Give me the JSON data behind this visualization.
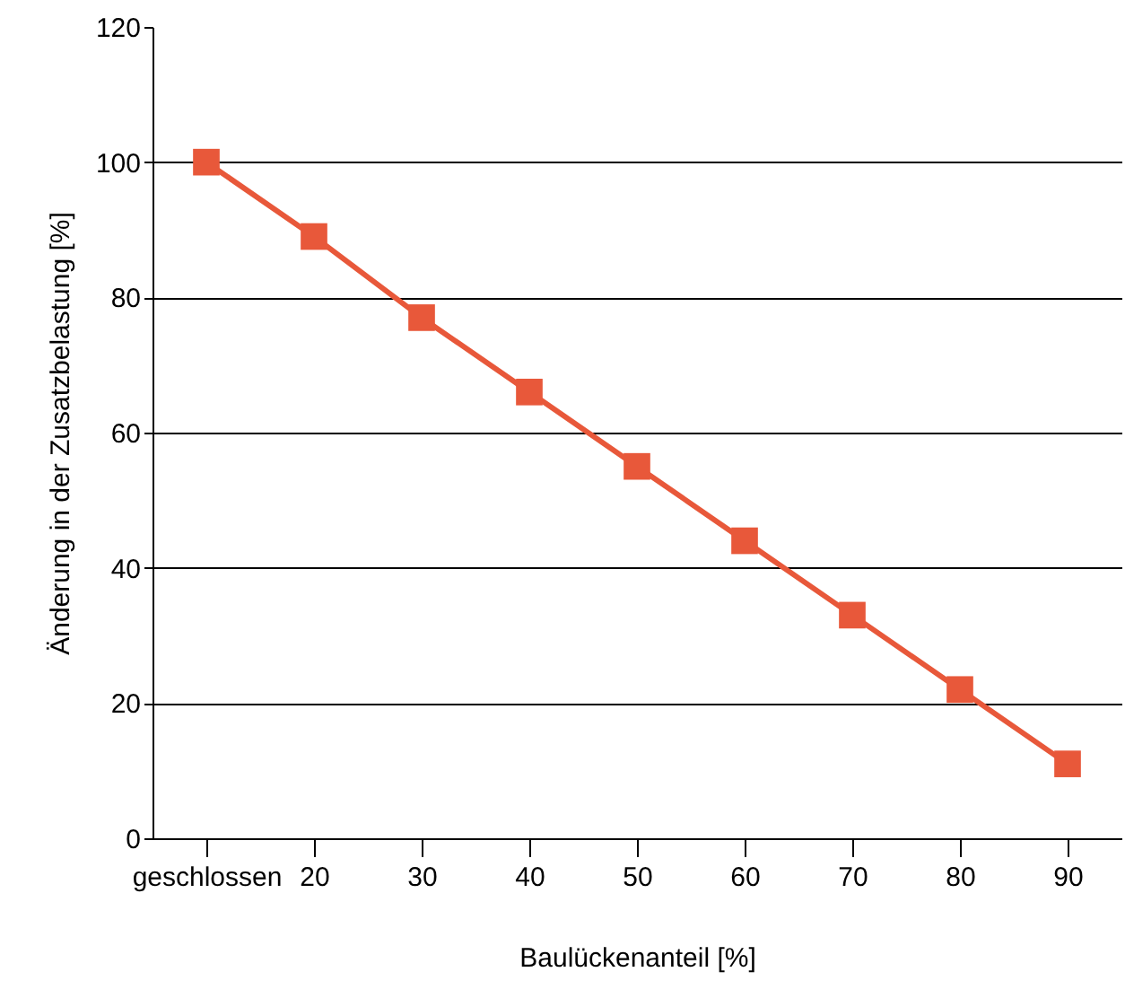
{
  "chart_data": {
    "type": "line",
    "xlabel": "Baulückenanteil [%]",
    "ylabel": "Änderung in der Zusatzbelastung [%]",
    "x": [
      10,
      20,
      30,
      40,
      50,
      60,
      70,
      80,
      90
    ],
    "series": [
      {
        "color": "#e8583a",
        "values": [
          100,
          89,
          77,
          66,
          55,
          44,
          33,
          22,
          11
        ]
      }
    ],
    "xlim": [
      5,
      95
    ],
    "xticks": [
      {
        "value": 10,
        "label": "geschlossen"
      },
      20,
      30,
      40,
      50,
      60,
      70,
      80,
      90
    ],
    "ylim": [
      0,
      120
    ],
    "yticks": [
      0,
      20,
      40,
      60,
      80,
      100,
      120
    ],
    "grid": "y",
    "marker": "square",
    "line_style": "solid"
  }
}
